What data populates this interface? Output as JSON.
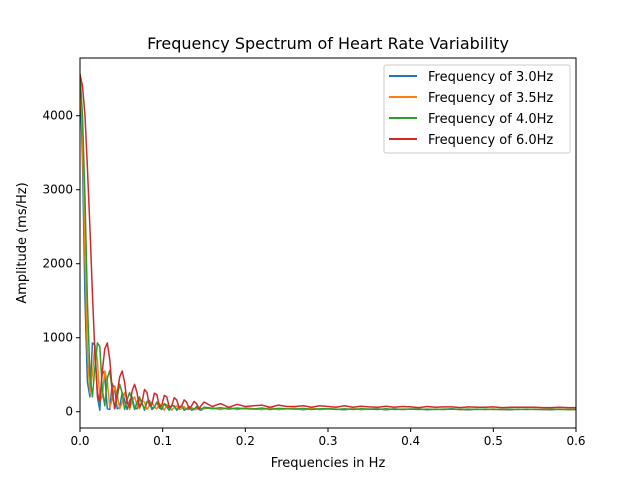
{
  "chart_data": {
    "type": "line",
    "title": "Frequency Spectrum of Heart Rate Variability",
    "xlabel": "Frequencies in Hz",
    "ylabel": "Amplitude (ms/Hz)",
    "xlim": [
      0,
      0.6
    ],
    "ylim": [
      -220,
      4780
    ],
    "xticks": [
      0.0,
      0.1,
      0.2,
      0.3,
      0.4,
      0.5,
      0.6
    ],
    "xtick_labels": [
      "0.0",
      "0.1",
      "0.2",
      "0.3",
      "0.4",
      "0.5",
      "0.6"
    ],
    "yticks": [
      0,
      1000,
      2000,
      3000,
      4000
    ],
    "ytick_labels": [
      "0",
      "1000",
      "2000",
      "3000",
      "4000"
    ],
    "grid": false,
    "legend_position": "top-right",
    "series": [
      {
        "name": "Frequency of 3.0Hz",
        "color": "#1f77b4",
        "x": [
          0.0,
          0.003,
          0.006,
          0.009,
          0.012,
          0.015,
          0.018,
          0.021,
          0.024,
          0.027,
          0.03,
          0.033,
          0.036,
          0.039,
          0.042,
          0.045,
          0.048,
          0.051,
          0.054,
          0.057,
          0.06,
          0.063,
          0.066,
          0.069,
          0.072,
          0.075,
          0.078,
          0.081,
          0.084,
          0.087,
          0.09,
          0.093,
          0.096,
          0.099,
          0.102,
          0.105,
          0.108,
          0.111,
          0.114,
          0.117,
          0.12,
          0.123,
          0.126,
          0.129,
          0.132,
          0.135,
          0.138,
          0.141,
          0.144,
          0.147,
          0.15,
          0.16,
          0.17,
          0.18,
          0.19,
          0.2,
          0.21,
          0.22,
          0.23,
          0.24,
          0.25,
          0.26,
          0.27,
          0.28,
          0.29,
          0.3,
          0.31,
          0.32,
          0.33,
          0.34,
          0.35,
          0.36,
          0.37,
          0.38,
          0.39,
          0.4,
          0.41,
          0.42,
          0.43,
          0.44,
          0.45,
          0.46,
          0.47,
          0.48,
          0.49,
          0.5,
          0.51,
          0.52,
          0.53,
          0.54,
          0.55,
          0.56,
          0.57,
          0.58,
          0.59,
          0.6
        ],
        "y": [
          4560,
          3400,
          1500,
          400,
          200,
          930,
          900,
          200,
          20,
          560,
          500,
          40,
          30,
          380,
          300,
          40,
          60,
          260,
          160,
          30,
          150,
          200,
          50,
          40,
          180,
          120,
          20,
          130,
          130,
          30,
          60,
          130,
          50,
          30,
          110,
          60,
          20,
          90,
          70,
          20,
          60,
          80,
          20,
          40,
          70,
          20,
          30,
          70,
          30,
          20,
          60,
          50,
          30,
          60,
          30,
          50,
          40,
          30,
          50,
          30,
          40,
          45,
          25,
          45,
          30,
          40,
          35,
          25,
          40,
          30,
          35,
          40,
          25,
          40,
          30,
          35,
          40,
          25,
          35,
          30,
          40,
          30,
          25,
          35,
          30,
          35,
          30,
          25,
          35,
          30,
          35,
          30,
          25,
          35,
          30,
          30
        ]
      },
      {
        "name": "Frequency of 3.5Hz",
        "color": "#ff7f0e",
        "x": [
          0.0,
          0.003,
          0.006,
          0.009,
          0.012,
          0.015,
          0.018,
          0.021,
          0.024,
          0.027,
          0.03,
          0.033,
          0.036,
          0.039,
          0.042,
          0.045,
          0.048,
          0.051,
          0.054,
          0.057,
          0.06,
          0.063,
          0.066,
          0.069,
          0.072,
          0.075,
          0.078,
          0.081,
          0.084,
          0.087,
          0.09,
          0.093,
          0.096,
          0.099,
          0.102,
          0.105,
          0.108,
          0.111,
          0.114,
          0.117,
          0.12,
          0.123,
          0.126,
          0.129,
          0.132,
          0.135,
          0.138,
          0.141,
          0.144,
          0.147,
          0.15,
          0.16,
          0.17,
          0.18,
          0.19,
          0.2,
          0.21,
          0.22,
          0.23,
          0.24,
          0.25,
          0.26,
          0.27,
          0.28,
          0.29,
          0.3,
          0.31,
          0.32,
          0.33,
          0.34,
          0.35,
          0.36,
          0.37,
          0.38,
          0.39,
          0.4,
          0.41,
          0.42,
          0.43,
          0.44,
          0.45,
          0.46,
          0.47,
          0.48,
          0.49,
          0.5,
          0.51,
          0.52,
          0.53,
          0.54,
          0.55,
          0.56,
          0.57,
          0.58,
          0.59,
          0.6
        ],
        "y": [
          4560,
          3700,
          2100,
          800,
          250,
          500,
          900,
          700,
          150,
          200,
          550,
          400,
          60,
          160,
          350,
          230,
          40,
          120,
          260,
          150,
          30,
          140,
          200,
          90,
          40,
          150,
          130,
          30,
          80,
          130,
          60,
          40,
          110,
          70,
          20,
          90,
          80,
          20,
          60,
          80,
          30,
          40,
          70,
          30,
          30,
          60,
          30,
          30,
          60,
          30,
          40,
          55,
          30,
          55,
          35,
          45,
          40,
          30,
          50,
          30,
          40,
          40,
          30,
          45,
          30,
          40,
          35,
          30,
          40,
          30,
          35,
          35,
          30,
          35,
          30,
          35,
          35,
          30,
          35,
          30,
          35,
          30,
          30,
          35,
          30,
          35,
          30,
          30,
          35,
          30,
          35,
          30,
          30,
          35,
          30,
          30
        ]
      },
      {
        "name": "Frequency of 4.0Hz",
        "color": "#2ca02c",
        "x": [
          0.0,
          0.003,
          0.006,
          0.009,
          0.012,
          0.015,
          0.018,
          0.021,
          0.024,
          0.027,
          0.03,
          0.033,
          0.036,
          0.039,
          0.042,
          0.045,
          0.048,
          0.051,
          0.054,
          0.057,
          0.06,
          0.063,
          0.066,
          0.069,
          0.072,
          0.075,
          0.078,
          0.081,
          0.084,
          0.087,
          0.09,
          0.093,
          0.096,
          0.099,
          0.102,
          0.105,
          0.108,
          0.111,
          0.114,
          0.117,
          0.12,
          0.123,
          0.126,
          0.129,
          0.132,
          0.135,
          0.138,
          0.141,
          0.144,
          0.147,
          0.15,
          0.16,
          0.17,
          0.18,
          0.19,
          0.2,
          0.21,
          0.22,
          0.23,
          0.24,
          0.25,
          0.26,
          0.27,
          0.28,
          0.29,
          0.3,
          0.31,
          0.32,
          0.33,
          0.34,
          0.35,
          0.36,
          0.37,
          0.38,
          0.39,
          0.4,
          0.41,
          0.42,
          0.43,
          0.44,
          0.45,
          0.46,
          0.47,
          0.48,
          0.49,
          0.5,
          0.51,
          0.52,
          0.53,
          0.54,
          0.55,
          0.56,
          0.57,
          0.58,
          0.59,
          0.6
        ],
        "y": [
          4560,
          4000,
          2900,
          1500,
          500,
          200,
          600,
          930,
          880,
          300,
          80,
          450,
          560,
          280,
          40,
          200,
          370,
          250,
          30,
          160,
          260,
          160,
          30,
          130,
          200,
          100,
          40,
          140,
          150,
          50,
          60,
          130,
          90,
          30,
          110,
          90,
          20,
          80,
          80,
          30,
          60,
          70,
          30,
          40,
          70,
          30,
          40,
          60,
          30,
          40,
          55,
          40,
          55,
          35,
          50,
          40,
          35,
          50,
          30,
          45,
          40,
          35,
          45,
          30,
          40,
          40,
          30,
          40,
          30,
          40,
          35,
          30,
          40,
          30,
          35,
          35,
          30,
          35,
          30,
          35,
          35,
          30,
          35,
          30,
          35,
          30,
          30,
          35,
          30,
          35,
          30,
          30,
          35,
          30,
          30,
          30
        ]
      },
      {
        "name": "Frequency of 6.0Hz",
        "color": "#d62728",
        "x": [
          0.0,
          0.003,
          0.006,
          0.009,
          0.012,
          0.015,
          0.018,
          0.021,
          0.024,
          0.027,
          0.03,
          0.033,
          0.036,
          0.039,
          0.042,
          0.045,
          0.048,
          0.051,
          0.054,
          0.057,
          0.06,
          0.063,
          0.066,
          0.069,
          0.072,
          0.075,
          0.078,
          0.081,
          0.084,
          0.087,
          0.09,
          0.093,
          0.096,
          0.099,
          0.102,
          0.105,
          0.108,
          0.111,
          0.114,
          0.117,
          0.12,
          0.123,
          0.126,
          0.129,
          0.132,
          0.135,
          0.138,
          0.141,
          0.144,
          0.147,
          0.15,
          0.16,
          0.17,
          0.18,
          0.19,
          0.2,
          0.21,
          0.22,
          0.23,
          0.24,
          0.25,
          0.26,
          0.27,
          0.28,
          0.29,
          0.3,
          0.31,
          0.32,
          0.33,
          0.34,
          0.35,
          0.36,
          0.37,
          0.38,
          0.39,
          0.4,
          0.41,
          0.42,
          0.43,
          0.44,
          0.45,
          0.46,
          0.47,
          0.48,
          0.49,
          0.5,
          0.51,
          0.52,
          0.53,
          0.54,
          0.55,
          0.56,
          0.57,
          0.58,
          0.59,
          0.6
        ],
        "y": [
          4560,
          4400,
          4000,
          3300,
          2500,
          1600,
          800,
          250,
          130,
          550,
          850,
          930,
          700,
          300,
          40,
          250,
          470,
          550,
          400,
          120,
          60,
          280,
          370,
          260,
          60,
          130,
          300,
          260,
          80,
          100,
          250,
          230,
          70,
          90,
          220,
          200,
          60,
          80,
          190,
          160,
          50,
          80,
          160,
          130,
          40,
          80,
          140,
          110,
          40,
          90,
          130,
          70,
          110,
          60,
          100,
          70,
          80,
          90,
          60,
          90,
          70,
          70,
          80,
          60,
          80,
          70,
          60,
          80,
          60,
          75,
          65,
          60,
          75,
          60,
          70,
          65,
          55,
          70,
          60,
          65,
          65,
          55,
          65,
          60,
          60,
          65,
          55,
          60,
          60,
          60,
          60,
          55,
          55,
          60,
          55,
          55
        ]
      }
    ]
  }
}
